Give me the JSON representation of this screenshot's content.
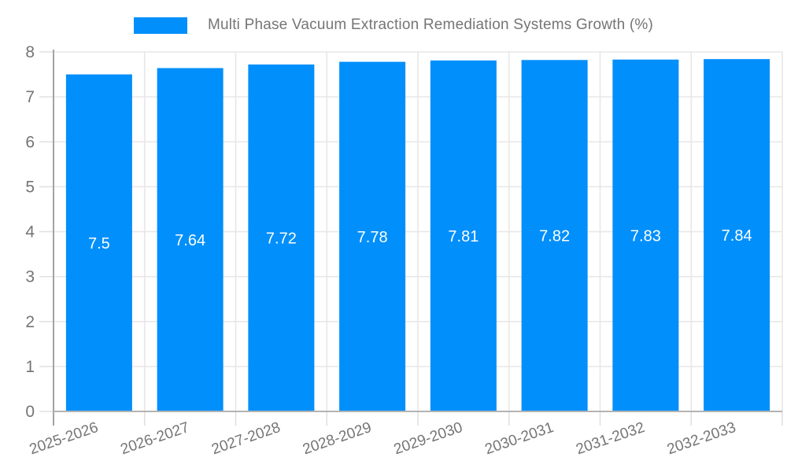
{
  "chart_data": {
    "type": "bar",
    "title": "Multi Phase Vacuum Extraction Remediation Systems Growth (%)",
    "legend": {
      "position": "top-center",
      "entries": [
        "Multi Phase Vacuum Extraction Remediation Systems Growth (%)"
      ]
    },
    "categories": [
      "2025-2026",
      "2026-2027",
      "2027-2028",
      "2028-2029",
      "2029-2030",
      "2030-2031",
      "2031-2032",
      "2032-2033"
    ],
    "values": [
      7.5,
      7.64,
      7.72,
      7.78,
      7.81,
      7.82,
      7.83,
      7.84
    ],
    "value_labels": [
      "7.5",
      "7.64",
      "7.72",
      "7.78",
      "7.81",
      "7.82",
      "7.83",
      "7.84"
    ],
    "xlabel": "",
    "ylabel": "",
    "ylim": [
      0,
      8
    ],
    "yticks": [
      0,
      1,
      2,
      3,
      4,
      5,
      6,
      7,
      8
    ],
    "grid": true,
    "x_tick_label_rotation_deg": -19,
    "colors": {
      "bar": "#008FFB",
      "value_label": "#ffffff",
      "axis_text": "#757575",
      "title_text": "#757575",
      "gridline": "#e7e7e7",
      "tick": "#e0e0e0",
      "y_axis_line": "#a3a3a3",
      "x_axis_line": "#b3b3b3",
      "background": "#ffffff"
    }
  }
}
